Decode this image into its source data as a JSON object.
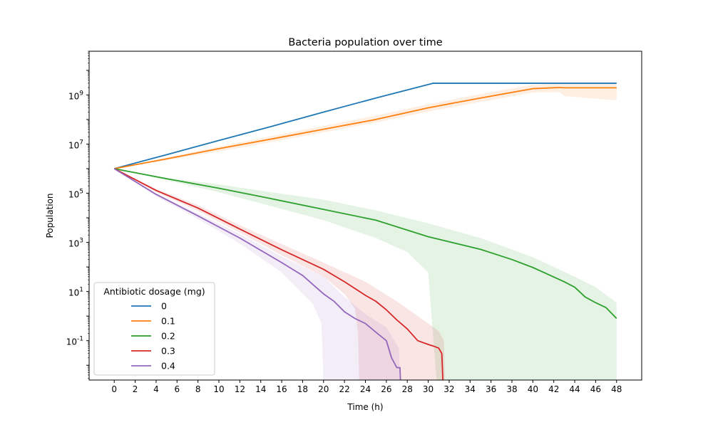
{
  "chart_data": {
    "type": "line",
    "title": "Bacteria population over time",
    "xlabel": "Time (h)",
    "ylabel": "Population",
    "xlim": [
      -2.4,
      50.4
    ],
    "ylim": [
      0.0025,
      60000000000
    ],
    "y_scale": "log",
    "grid": false,
    "xticks": [
      0,
      2,
      4,
      6,
      8,
      10,
      12,
      14,
      16,
      18,
      20,
      22,
      24,
      26,
      28,
      30,
      32,
      34,
      36,
      38,
      40,
      42,
      44,
      46,
      48
    ],
    "yticks": [
      {
        "exp": "-1",
        "value": 0.1
      },
      {
        "exp": "1",
        "value": 10
      },
      {
        "exp": "3",
        "value": 1000
      },
      {
        "exp": "5",
        "value": 100000
      },
      {
        "exp": "7",
        "value": 10000000
      },
      {
        "exp": "9",
        "value": 1000000000
      }
    ],
    "ytick_base": "10",
    "legend": {
      "title": "Antibiotic dosage (mg)",
      "position": "lower-left"
    },
    "series": [
      {
        "name": "0",
        "color": "#1f77b4",
        "line": [
          [
            0,
            1000000
          ],
          [
            5,
            3700000
          ],
          [
            10,
            14000000
          ],
          [
            15,
            52000000
          ],
          [
            20,
            200000000
          ],
          [
            25,
            750000000
          ],
          [
            30.5,
            3000000000
          ],
          [
            48,
            3000000000
          ]
        ],
        "band": null
      },
      {
        "name": "0.1",
        "color": "#ff7f0e",
        "line": [
          [
            0,
            1000000
          ],
          [
            5,
            2500000
          ],
          [
            10,
            6500000
          ],
          [
            15,
            16000000
          ],
          [
            20,
            40000000
          ],
          [
            25,
            100000000
          ],
          [
            30,
            300000000
          ],
          [
            35,
            750000000
          ],
          [
            40,
            1800000000
          ],
          [
            42.5,
            2000000000
          ],
          [
            43,
            1950000000
          ],
          [
            48,
            1950000000
          ]
        ],
        "band": {
          "upper": [
            [
              0,
              1000000
            ],
            [
              5,
              2800000
            ],
            [
              10,
              8000000
            ],
            [
              15,
              21000000
            ],
            [
              20,
              55000000
            ],
            [
              25,
              145000000
            ],
            [
              30,
              420000000
            ],
            [
              35,
              1100000000
            ],
            [
              40,
              2600000000
            ],
            [
              42.5,
              3000000000
            ],
            [
              48,
              3000000000
            ]
          ],
          "lower": [
            [
              0,
              1000000
            ],
            [
              5,
              2200000
            ],
            [
              10,
              5000000
            ],
            [
              15,
              12000000
            ],
            [
              20,
              30000000
            ],
            [
              25,
              75000000
            ],
            [
              30,
              210000000
            ],
            [
              35,
              520000000
            ],
            [
              40,
              1250000000
            ],
            [
              42.5,
              1300000000
            ],
            [
              43,
              900000000
            ],
            [
              48,
              600000000
            ]
          ]
        }
      },
      {
        "name": "0.2",
        "color": "#2ca02c",
        "line": [
          [
            0,
            1000000
          ],
          [
            5,
            390000
          ],
          [
            10,
            160000
          ],
          [
            15,
            60000
          ],
          [
            20,
            22000
          ],
          [
            25,
            8000
          ],
          [
            30,
            1700
          ],
          [
            35,
            520
          ],
          [
            38,
            200
          ],
          [
            40,
            95
          ],
          [
            43,
            25
          ],
          [
            44,
            15
          ],
          [
            45,
            6
          ],
          [
            46,
            3.5
          ],
          [
            47,
            2.2
          ],
          [
            48,
            0.8
          ]
        ],
        "band": {
          "upper": [
            [
              0,
              1000000
            ],
            [
              5,
              420000
            ],
            [
              10,
              230000
            ],
            [
              15,
              110000
            ],
            [
              20,
              55000
            ],
            [
              25,
              20000
            ],
            [
              30,
              6000
            ],
            [
              35,
              1500
            ],
            [
              40,
              250
            ],
            [
              44,
              40
            ],
            [
              46,
              15
            ],
            [
              48,
              3.5
            ]
          ],
          "lower": [
            [
              0,
              1000000
            ],
            [
              5,
              340000
            ],
            [
              10,
              110000
            ],
            [
              15,
              30000
            ],
            [
              20,
              8000
            ],
            [
              25,
              1500
            ],
            [
              28,
              400
            ],
            [
              30,
              60
            ],
            [
              30.5,
              0.1
            ],
            [
              30.8,
              0.0025
            ],
            [
              48,
              0.0025
            ]
          ]
        }
      },
      {
        "name": "0.3",
        "color": "#d62728",
        "line": [
          [
            0,
            1000000
          ],
          [
            4,
            130000
          ],
          [
            8,
            25000
          ],
          [
            12,
            3500
          ],
          [
            16,
            500
          ],
          [
            20,
            80
          ],
          [
            22,
            25
          ],
          [
            24,
            7
          ],
          [
            25,
            4
          ],
          [
            26,
            1.8
          ],
          [
            27,
            0.7
          ],
          [
            28,
            0.3
          ],
          [
            29,
            0.1
          ],
          [
            30,
            0.07
          ],
          [
            30.5,
            0.06
          ],
          [
            31,
            0.05
          ],
          [
            31.3,
            0.03
          ],
          [
            31.4,
            0.0025
          ]
        ],
        "band": {
          "upper": [
            [
              0,
              1000000
            ],
            [
              4,
              150000
            ],
            [
              8,
              33000
            ],
            [
              12,
              5000
            ],
            [
              16,
              850
            ],
            [
              20,
              150
            ],
            [
              24,
              25
            ],
            [
              27,
              4
            ],
            [
              29,
              1
            ],
            [
              31,
              0.25
            ],
            [
              31.5,
              0.1
            ],
            [
              31.6,
              0.0025
            ]
          ],
          "lower": [
            [
              0,
              1000000
            ],
            [
              4,
              110000
            ],
            [
              8,
              19000
            ],
            [
              12,
              2500
            ],
            [
              16,
              300
            ],
            [
              20,
              40
            ],
            [
              22,
              8
            ],
            [
              23,
              2
            ],
            [
              23.3,
              0.2
            ],
            [
              23.4,
              0.0025
            ]
          ]
        }
      },
      {
        "name": "0.4",
        "color": "#9467bd",
        "line": [
          [
            0,
            1000000
          ],
          [
            4,
            90000
          ],
          [
            8,
            12000
          ],
          [
            12,
            1500
          ],
          [
            16,
            150
          ],
          [
            18,
            45
          ],
          [
            20,
            8
          ],
          [
            21,
            4
          ],
          [
            22,
            1.5
          ],
          [
            23,
            0.8
          ],
          [
            24,
            0.5
          ],
          [
            25,
            0.22
          ],
          [
            26,
            0.1
          ],
          [
            26.5,
            0.02
          ],
          [
            27,
            0.008
          ],
          [
            27.3,
            0.008
          ],
          [
            27.35,
            0.0025
          ]
        ],
        "band": {
          "upper": [
            [
              0,
              1000000
            ],
            [
              4,
              100000
            ],
            [
              8,
              15000
            ],
            [
              12,
              2200
            ],
            [
              16,
              270
            ],
            [
              20,
              40
            ],
            [
              22,
              6
            ],
            [
              24,
              1.2
            ],
            [
              26,
              0.35
            ],
            [
              27.2,
              0.05
            ],
            [
              27.3,
              0.0025
            ]
          ],
          "lower": [
            [
              0,
              1000000
            ],
            [
              4,
              75000
            ],
            [
              8,
              9000
            ],
            [
              12,
              900
            ],
            [
              16,
              60
            ],
            [
              18,
              8
            ],
            [
              19,
              3
            ],
            [
              19.8,
              0.5
            ],
            [
              20,
              0.0025
            ]
          ]
        }
      }
    ]
  }
}
